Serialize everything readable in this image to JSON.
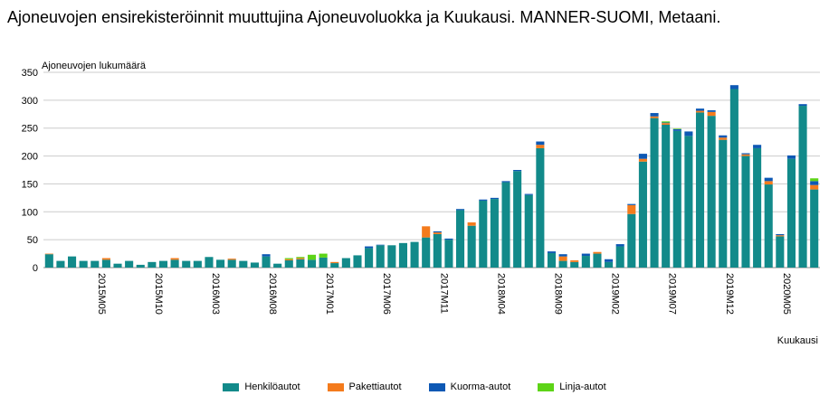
{
  "chart_data": {
    "type": "bar",
    "stacked": true,
    "title": "Ajoneuvojen ensirekisteröinnit muuttujina Ajoneuvoluokka ja Kuukausi. MANNER-SUOMI, Metaani.",
    "xlabel": "Kuukausi",
    "ylabel": "Ajoneuvojen lukumäärä",
    "ylim": [
      0,
      350
    ],
    "yticks": [
      0,
      50,
      100,
      150,
      200,
      250,
      300,
      350
    ],
    "grid": true,
    "legend_position": "bottom",
    "categories": [
      "2015M01",
      "2015M02",
      "2015M03",
      "2015M04",
      "2015M05",
      "2015M06",
      "2015M07",
      "2015M08",
      "2015M09",
      "2015M10",
      "2015M11",
      "2015M12",
      "2016M01",
      "2016M02",
      "2016M03",
      "2016M04",
      "2016M05",
      "2016M06",
      "2016M07",
      "2016M08",
      "2016M09",
      "2016M10",
      "2016M11",
      "2016M12",
      "2017M01",
      "2017M02",
      "2017M03",
      "2017M04",
      "2017M05",
      "2017M06",
      "2017M07",
      "2017M08",
      "2017M09",
      "2017M10",
      "2017M11",
      "2017M12",
      "2018M01",
      "2018M02",
      "2018M03",
      "2018M04",
      "2018M05",
      "2018M06",
      "2018M07",
      "2018M08",
      "2018M09",
      "2018M10",
      "2018M11",
      "2018M12",
      "2019M01",
      "2019M02",
      "2019M03",
      "2019M04",
      "2019M05",
      "2019M06",
      "2019M07",
      "2019M08",
      "2019M09",
      "2019M10",
      "2019M11",
      "2019M12",
      "2020M01",
      "2020M02",
      "2020M03",
      "2020M04",
      "2020M05",
      "2020M06",
      "2020M07",
      "2020M08"
    ],
    "tick_labels": [
      "2015M05",
      "2015M10",
      "2016M03",
      "2016M08",
      "2017M01",
      "2017M06",
      "2017M11",
      "2018M04",
      "2018M09",
      "2019M02",
      "2019M07",
      "2019M12",
      "2020M05"
    ],
    "series": [
      {
        "name": "Henkilöautot",
        "color": "#128a8a",
        "values": [
          24,
          12,
          20,
          12,
          12,
          14,
          7,
          12,
          5,
          10,
          12,
          14,
          12,
          12,
          19,
          14,
          14,
          12,
          9,
          20,
          7,
          13,
          15,
          14,
          18,
          8,
          17,
          22,
          35,
          40,
          40,
          44,
          46,
          54,
          60,
          50,
          103,
          75,
          120,
          123,
          153,
          173,
          130,
          214,
          26,
          12,
          10,
          21,
          25,
          10,
          38,
          96,
          190,
          268,
          256,
          245,
          236,
          278,
          272,
          229,
          320,
          200,
          214,
          149,
          56,
          195,
          290,
          140
        ]
      },
      {
        "name": "Pakettiautot",
        "color": "#f47b1c",
        "values": [
          1,
          0,
          0,
          0,
          0,
          3,
          0,
          0,
          0,
          0,
          0,
          3,
          0,
          0,
          0,
          0,
          2,
          0,
          0,
          0,
          0,
          2,
          2,
          0,
          0,
          2,
          0,
          0,
          0,
          0,
          0,
          0,
          0,
          20,
          3,
          0,
          0,
          6,
          0,
          0,
          0,
          0,
          0,
          6,
          0,
          8,
          3,
          0,
          3,
          0,
          0,
          16,
          5,
          3,
          3,
          0,
          0,
          3,
          7,
          4,
          0,
          3,
          0,
          6,
          2,
          0,
          0,
          8
        ]
      },
      {
        "name": "Kuorma-autot",
        "color": "#0d58b4",
        "values": [
          0,
          0,
          0,
          0,
          0,
          0,
          0,
          0,
          0,
          0,
          0,
          0,
          0,
          0,
          0,
          0,
          0,
          0,
          0,
          4,
          0,
          0,
          0,
          0,
          0,
          0,
          0,
          0,
          3,
          1,
          0,
          0,
          0,
          0,
          2,
          2,
          2,
          0,
          2,
          2,
          2,
          2,
          2,
          6,
          3,
          4,
          0,
          4,
          0,
          5,
          4,
          2,
          9,
          6,
          1,
          3,
          8,
          4,
          3,
          4,
          7,
          2,
          6,
          6,
          2,
          6,
          3,
          7
        ]
      },
      {
        "name": "Linja-autot",
        "color": "#5dd417",
        "values": [
          0,
          0,
          0,
          0,
          0,
          0,
          0,
          0,
          0,
          0,
          0,
          0,
          0,
          0,
          0,
          0,
          0,
          0,
          0,
          0,
          0,
          2,
          2,
          9,
          7,
          0,
          0,
          0,
          0,
          0,
          0,
          0,
          0,
          0,
          0,
          0,
          0,
          0,
          0,
          0,
          0,
          0,
          0,
          0,
          0,
          0,
          0,
          0,
          0,
          0,
          0,
          0,
          0,
          0,
          2,
          1,
          0,
          0,
          0,
          0,
          0,
          0,
          0,
          0,
          0,
          0,
          0,
          5
        ]
      }
    ]
  }
}
